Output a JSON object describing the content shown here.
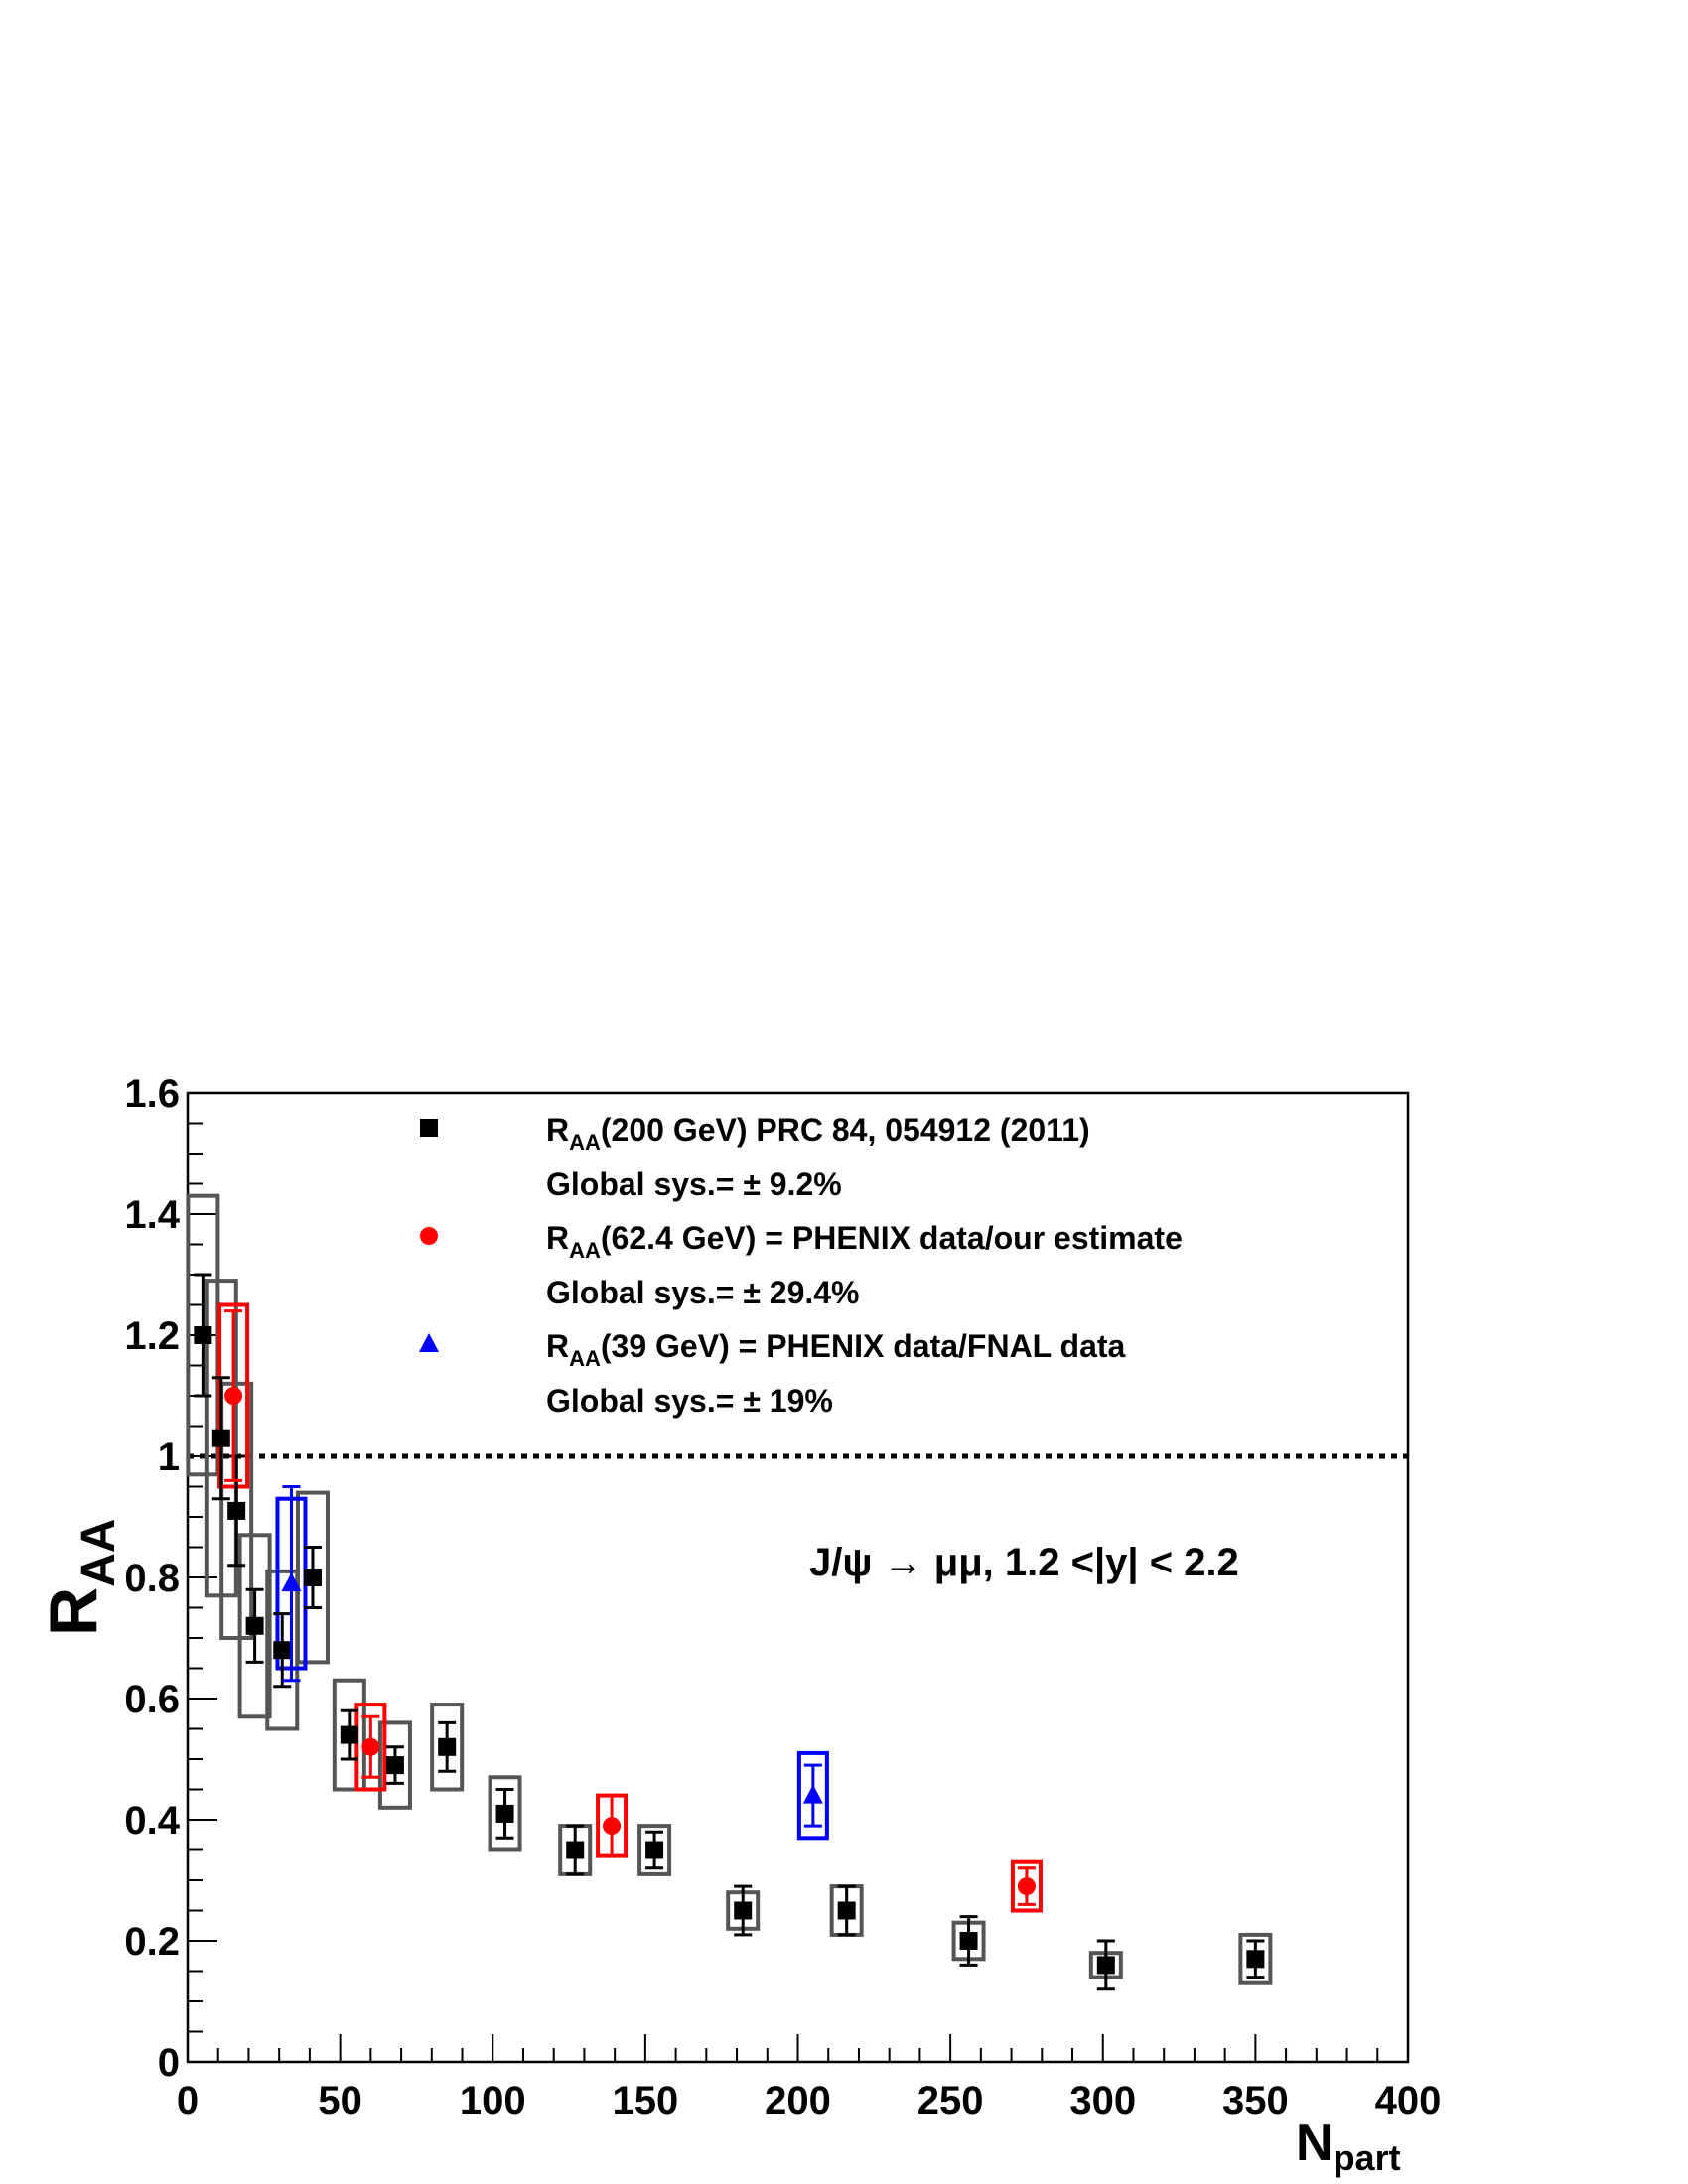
{
  "chart_data": {
    "type": "scatter",
    "xlabel": "N",
    "xlabel_sub": "part",
    "ylabel": "R",
    "ylabel_sub": "AA",
    "xlim": [
      0,
      400
    ],
    "ylim": [
      0,
      1.6
    ],
    "xticks": [
      0,
      50,
      100,
      150,
      200,
      250,
      300,
      350,
      400
    ],
    "xtick_labels": [
      "0",
      "50",
      "100",
      "150",
      "200",
      "250",
      "300",
      "350",
      "400"
    ],
    "yticks": [
      0,
      0.2,
      0.4,
      0.6,
      0.8,
      1,
      1.2,
      1.4,
      1.6
    ],
    "ytick_labels": [
      "0",
      "0.2",
      "0.4",
      "0.6",
      "0.8",
      "1",
      "1.2",
      "1.4",
      "1.6"
    ],
    "reference_line": {
      "y": 1,
      "style": "dotted"
    },
    "annotation": "J/ψ → μμ, 1.2 <|y| < 2.2",
    "series": [
      {
        "name": "R_AA(200 GeV) PRC 84, 054912 (2011)",
        "marker": "square",
        "color": "#000000",
        "box_color": "#555555",
        "points": [
          {
            "x": 5,
            "y": 1.2,
            "stat": 0.1,
            "sys": 0.23
          },
          {
            "x": 11,
            "y": 1.03,
            "stat": 0.1,
            "sys": 0.26
          },
          {
            "x": 16,
            "y": 0.91,
            "stat": 0.09,
            "sys": 0.21
          },
          {
            "x": 22,
            "y": 0.72,
            "stat": 0.06,
            "sys": 0.15
          },
          {
            "x": 31,
            "y": 0.68,
            "stat": 0.06,
            "sys": 0.13
          },
          {
            "x": 41,
            "y": 0.8,
            "stat": 0.05,
            "sys": 0.14
          },
          {
            "x": 53,
            "y": 0.54,
            "stat": 0.04,
            "sys": 0.09
          },
          {
            "x": 68,
            "y": 0.49,
            "stat": 0.03,
            "sys": 0.07
          },
          {
            "x": 85,
            "y": 0.52,
            "stat": 0.04,
            "sys": 0.07
          },
          {
            "x": 104,
            "y": 0.41,
            "stat": 0.04,
            "sys": 0.06
          },
          {
            "x": 127,
            "y": 0.35,
            "stat": 0.04,
            "sys": 0.04
          },
          {
            "x": 153,
            "y": 0.35,
            "stat": 0.03,
            "sys": 0.04
          },
          {
            "x": 182,
            "y": 0.25,
            "stat": 0.04,
            "sys": 0.03
          },
          {
            "x": 216,
            "y": 0.25,
            "stat": 0.04,
            "sys": 0.04
          },
          {
            "x": 256,
            "y": 0.2,
            "stat": 0.04,
            "sys": 0.03
          },
          {
            "x": 301,
            "y": 0.16,
            "stat": 0.04,
            "sys": 0.02
          },
          {
            "x": 350,
            "y": 0.17,
            "stat": 0.03,
            "sys": 0.04
          }
        ]
      },
      {
        "name": "R_AA(62.4 GeV) = PHENIX data/our estimate",
        "marker": "circle",
        "color": "#ff0000",
        "box_color": "#ff0000",
        "points": [
          {
            "x": 15,
            "y": 1.1,
            "stat": 0.14,
            "sys": 0.15
          },
          {
            "x": 60,
            "y": 0.52,
            "stat": 0.05,
            "sys": 0.07
          },
          {
            "x": 139,
            "y": 0.39,
            "stat": 0.05,
            "sys": 0.05
          },
          {
            "x": 275,
            "y": 0.29,
            "stat": 0.03,
            "sys": 0.04
          }
        ]
      },
      {
        "name": "R_AA(39 GeV) = PHENIX data/FNAL data",
        "marker": "triangle",
        "color": "#0000ff",
        "box_color": "#0000ff",
        "points": [
          {
            "x": 34,
            "y": 0.79,
            "stat": 0.16,
            "sys": 0.14
          },
          {
            "x": 205,
            "y": 0.44,
            "stat": 0.05,
            "sys": 0.07
          }
        ]
      }
    ],
    "legend": {
      "placement": "top",
      "entries": [
        {
          "marker": "square",
          "color": "#000000",
          "main": "R",
          "sub": "AA",
          "rest": "(200 GeV) PRC 84, 054912 (2011)",
          "sys_text": "Global sys.= ± 9.2%"
        },
        {
          "marker": "circle",
          "color": "#ff0000",
          "main": "R",
          "sub": "AA",
          "rest": "(62.4 GeV) = PHENIX data/our estimate",
          "sys_text": "Global sys.= ± 29.4%"
        },
        {
          "marker": "triangle",
          "color": "#0000ff",
          "main": "R",
          "sub": "AA",
          "rest": "(39 GeV) = PHENIX data/FNAL data",
          "sys_text": "Global sys.= ± 19%"
        }
      ]
    }
  }
}
